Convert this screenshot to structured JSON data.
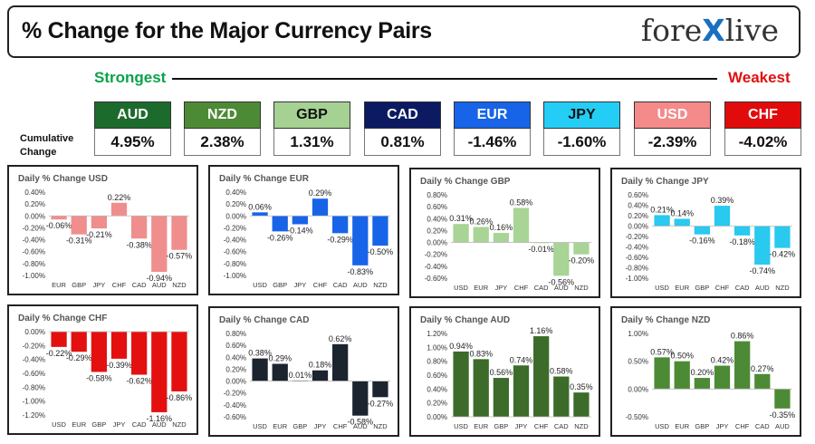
{
  "header": {
    "title": "% Change for the Major Currency Pairs",
    "logo_left": "fore",
    "logo_x": "X",
    "logo_right": "live"
  },
  "scale": {
    "strongest_label": "Strongest",
    "weakest_label": "Weakest",
    "cumulative_label": "Cumulative Change"
  },
  "currencies": [
    {
      "code": "AUD",
      "value": "4.95%",
      "color": "#1d6b2c",
      "text_color": "#ffffff"
    },
    {
      "code": "NZD",
      "value": "2.38%",
      "color": "#4d8a35",
      "text_color": "#ffffff"
    },
    {
      "code": "GBP",
      "value": "1.31%",
      "color": "#a5d192",
      "text_color": "#111111"
    },
    {
      "code": "CAD",
      "value": "0.81%",
      "color": "#0c1a62",
      "text_color": "#ffffff"
    },
    {
      "code": "EUR",
      "value": "-1.46%",
      "color": "#1764e8",
      "text_color": "#ffffff"
    },
    {
      "code": "JPY",
      "value": "-1.60%",
      "color": "#24cdf5",
      "text_color": "#111111"
    },
    {
      "code": "USD",
      "value": "-2.39%",
      "color": "#f58a8a",
      "text_color": "#ffffff"
    },
    {
      "code": "CHF",
      "value": "-4.02%",
      "color": "#e20b0b",
      "text_color": "#ffffff"
    }
  ],
  "chart_data": [
    {
      "type": "bar",
      "title": "Daily % Change USD",
      "color": "#f08e8e",
      "categories": [
        "EUR",
        "GBP",
        "JPY",
        "CHF",
        "CAD",
        "AUD",
        "NZD"
      ],
      "values": [
        -0.06,
        -0.31,
        -0.21,
        0.22,
        -0.38,
        -0.94,
        -0.57
      ],
      "labels": [
        "-0.06%",
        "-0.31%",
        "-0.21%",
        "0.22%",
        "-0.38%",
        "-0.94%",
        "-0.57%"
      ],
      "ylim": [
        -1.0,
        0.4
      ],
      "yticks": [
        0.4,
        0.2,
        0.0,
        -0.2,
        -0.4,
        -0.6,
        -0.8,
        -1.0
      ],
      "ytick_labels": [
        "0.40%",
        "0.20%",
        "0.00%",
        "-0.20%",
        "-0.40%",
        "-0.60%",
        "-0.80%",
        "-1.00%"
      ]
    },
    {
      "type": "bar",
      "title": "Daily % Change EUR",
      "color": "#1764e8",
      "categories": [
        "USD",
        "GBP",
        "JPY",
        "CHF",
        "CAD",
        "AUD",
        "NZD"
      ],
      "values": [
        0.06,
        -0.26,
        -0.14,
        0.29,
        -0.29,
        -0.83,
        -0.5
      ],
      "labels": [
        "0.06%",
        "-0.26%",
        "-0.14%",
        "0.29%",
        "-0.29%",
        "-0.83%",
        "-0.50%"
      ],
      "ylim": [
        -1.0,
        0.4
      ],
      "yticks": [
        0.4,
        0.2,
        0.0,
        -0.2,
        -0.4,
        -0.6,
        -0.8,
        -1.0
      ],
      "ytick_labels": [
        "0.40%",
        "0.20%",
        "0.00%",
        "-0.20%",
        "-0.40%",
        "-0.60%",
        "-0.80%",
        "-1.00%"
      ]
    },
    {
      "type": "bar",
      "title": "Daily % Change GBP",
      "color": "#a8d495",
      "categories": [
        "USD",
        "EUR",
        "JPY",
        "CHF",
        "CAD",
        "AUD",
        "NZD"
      ],
      "values": [
        0.31,
        0.26,
        0.16,
        0.58,
        -0.01,
        -0.56,
        -0.2
      ],
      "labels": [
        "0.31%",
        "0.26%",
        "0.16%",
        "0.58%",
        "-0.01%",
        "-0.56%",
        "-0.20%"
      ],
      "ylim": [
        -0.6,
        0.8
      ],
      "yticks": [
        0.8,
        0.6,
        0.4,
        0.2,
        0.0,
        -0.2,
        -0.4,
        -0.6
      ],
      "ytick_labels": [
        "0.80%",
        "0.60%",
        "0.40%",
        "0.20%",
        "0.00%",
        "-0.20%",
        "-0.40%",
        "-0.60%"
      ]
    },
    {
      "type": "bar",
      "title": "Daily % Change JPY",
      "color": "#29c9f0",
      "categories": [
        "USD",
        "EUR",
        "GBP",
        "CHF",
        "CAD",
        "AUD",
        "NZD"
      ],
      "values": [
        0.21,
        0.14,
        -0.16,
        0.39,
        -0.18,
        -0.74,
        -0.42
      ],
      "labels": [
        "0.21%",
        "0.14%",
        "-0.16%",
        "0.39%",
        "-0.18%",
        "-0.74%",
        "-0.42%"
      ],
      "ylim": [
        -1.0,
        0.6
      ],
      "yticks": [
        0.6,
        0.4,
        0.2,
        0.0,
        -0.2,
        -0.4,
        -0.6,
        -0.8,
        -1.0
      ],
      "ytick_labels": [
        "0.60%",
        "0.40%",
        "0.20%",
        "0.00%",
        "-0.20%",
        "-0.40%",
        "-0.60%",
        "-0.80%",
        "-1.00%"
      ]
    },
    {
      "type": "bar",
      "title": "Daily % Change CHF",
      "color": "#e41010",
      "categories": [
        "USD",
        "EUR",
        "GBP",
        "JPY",
        "CAD",
        "AUD",
        "NZD"
      ],
      "values": [
        -0.22,
        -0.29,
        -0.58,
        -0.39,
        -0.62,
        -1.16,
        -0.86
      ],
      "labels": [
        "-0.22%",
        "-0.29%",
        "-0.58%",
        "-0.39%",
        "-0.62%",
        "-1.16%",
        "-0.86%"
      ],
      "ylim": [
        -1.2,
        0.0
      ],
      "yticks": [
        0.0,
        -0.2,
        -0.4,
        -0.6,
        -0.8,
        -1.0,
        -1.2
      ],
      "ytick_labels": [
        "0.00%",
        "-0.20%",
        "-0.40%",
        "-0.60%",
        "-0.80%",
        "-1.00%",
        "-1.20%"
      ]
    },
    {
      "type": "bar",
      "title": "Daily % Change CAD",
      "color": "#1c2430",
      "categories": [
        "USD",
        "EUR",
        "GBP",
        "JPY",
        "CHF",
        "AUD",
        "NZD"
      ],
      "values": [
        0.38,
        0.29,
        0.01,
        0.18,
        0.62,
        -0.58,
        -0.27
      ],
      "labels": [
        "0.38%",
        "0.29%",
        "0.01%",
        "0.18%",
        "0.62%",
        "-0.58%",
        "-0.27%"
      ],
      "ylim": [
        -0.6,
        0.8
      ],
      "yticks": [
        0.8,
        0.6,
        0.4,
        0.2,
        0.0,
        -0.2,
        -0.4,
        -0.6
      ],
      "ytick_labels": [
        "0.80%",
        "0.60%",
        "0.40%",
        "0.20%",
        "0.00%",
        "-0.20%",
        "-0.40%",
        "-0.60%"
      ]
    },
    {
      "type": "bar",
      "title": "Daily % Change AUD",
      "color": "#3d6b2a",
      "categories": [
        "USD",
        "EUR",
        "GBP",
        "JPY",
        "CHF",
        "CAD",
        "NZD"
      ],
      "values": [
        0.94,
        0.83,
        0.56,
        0.74,
        1.16,
        0.58,
        0.35
      ],
      "labels": [
        "0.94%",
        "0.83%",
        "0.56%",
        "0.74%",
        "1.16%",
        "0.58%",
        "0.35%"
      ],
      "ylim": [
        0.0,
        1.2
      ],
      "yticks": [
        1.2,
        1.0,
        0.8,
        0.6,
        0.4,
        0.2,
        0.0
      ],
      "ytick_labels": [
        "1.20%",
        "1.00%",
        "0.80%",
        "0.60%",
        "0.40%",
        "0.20%",
        "0.00%"
      ]
    },
    {
      "type": "bar",
      "title": "Daily % Change NZD",
      "color": "#4d8a35",
      "categories": [
        "USD",
        "EUR",
        "GBP",
        "JPY",
        "CHF",
        "CAD",
        "AUD"
      ],
      "values": [
        0.57,
        0.5,
        0.2,
        0.42,
        0.86,
        0.27,
        -0.35
      ],
      "labels": [
        "0.57%",
        "0.50%",
        "0.20%",
        "0.42%",
        "0.86%",
        "0.27%",
        "-0.35%"
      ],
      "ylim": [
        -0.5,
        1.0
      ],
      "yticks": [
        1.0,
        0.5,
        0.0,
        -0.5
      ],
      "ytick_labels": [
        "1.00%",
        "0.50%",
        "0.00%",
        "-0.50%"
      ]
    }
  ]
}
